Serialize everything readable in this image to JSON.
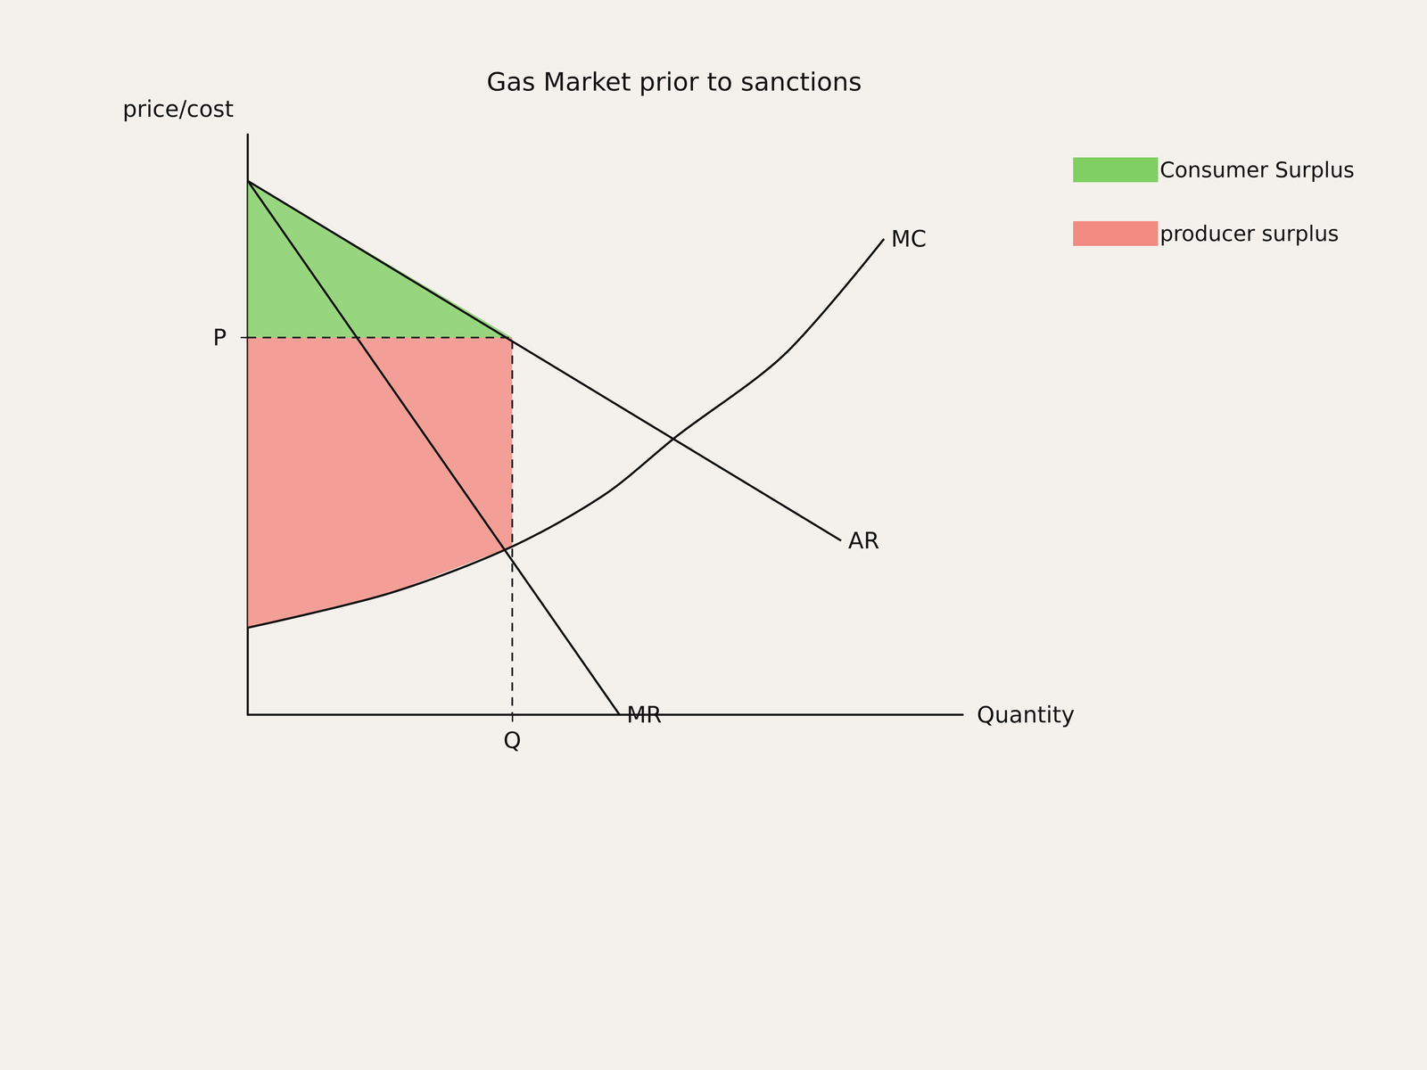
{
  "chart_data": {
    "type": "line",
    "title": "Gas Market prior to sanctions",
    "x_label": "Quantity",
    "y_label": "price/cost",
    "xlim": [
      0,
      100
    ],
    "ylim": [
      0,
      100
    ],
    "xticks": [
      {
        "value": 37,
        "label": "Q"
      }
    ],
    "yticks": [
      {
        "value": 65,
        "label": "P"
      }
    ],
    "grid": false,
    "legend": "right",
    "series": [
      {
        "name": "MC",
        "color": "#111111",
        "x": [
          0,
          20,
          37,
          50,
          60,
          75,
          89
        ],
        "values": [
          15,
          21,
          29,
          38,
          48,
          62,
          82
        ]
      },
      {
        "name": "AR",
        "color": "#111111",
        "x": [
          0,
          83
        ],
        "values": [
          92,
          30
        ]
      },
      {
        "name": "MR",
        "color": "#111111",
        "x": [
          0,
          52
        ],
        "values": [
          92,
          0
        ]
      }
    ],
    "areas": [
      {
        "name": "Consumer Surplus",
        "color": "#7fcf63",
        "x": [
          0,
          0,
          37
        ],
        "values": [
          92,
          65,
          65
        ]
      },
      {
        "name": "producer surplus",
        "color": "#f28b82",
        "x": [
          0,
          37,
          37,
          20,
          0
        ],
        "values": [
          65,
          65,
          29,
          21,
          15
        ]
      }
    ]
  }
}
